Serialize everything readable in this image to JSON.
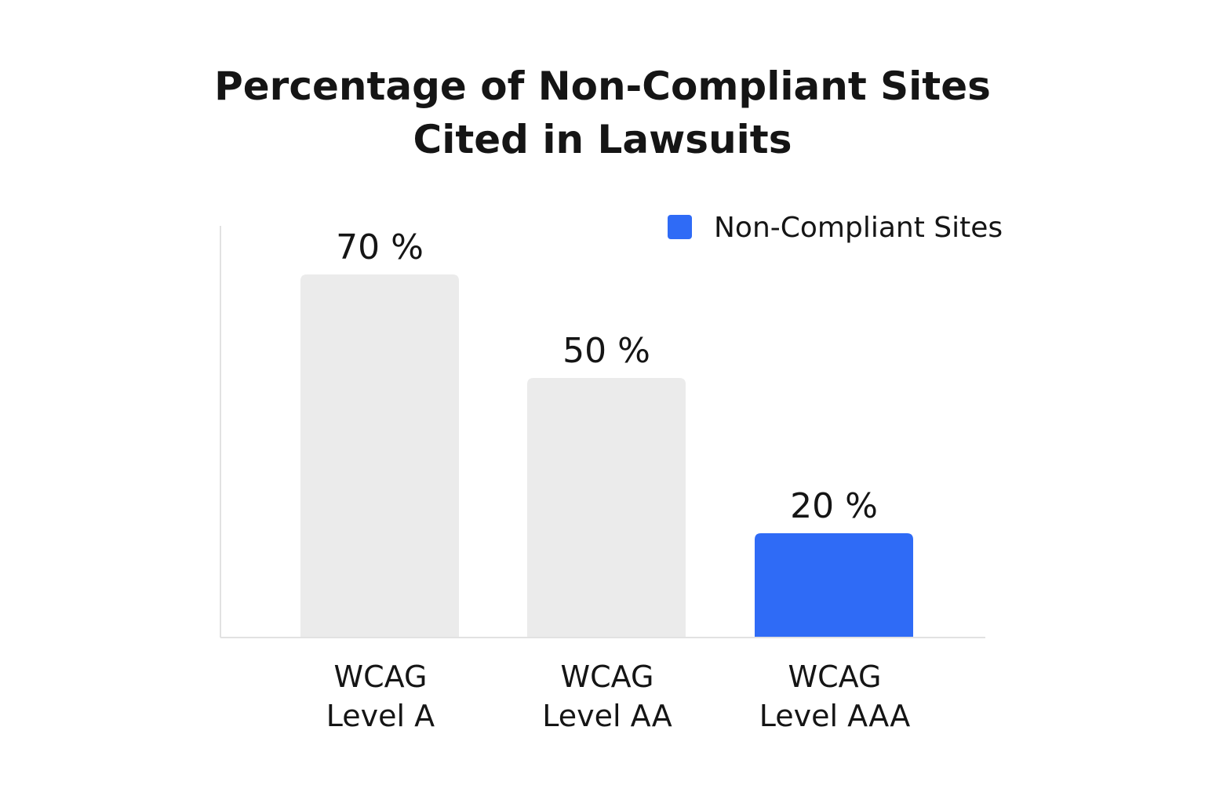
{
  "chart_data": {
    "type": "bar",
    "title_lines": [
      "Percentage of Non-Compliant Sites",
      "Cited in Lawsuits"
    ],
    "categories": [
      [
        "WCAG",
        "Level A"
      ],
      [
        "WCAG",
        "Level AA"
      ],
      [
        "WCAG",
        "Level AAA"
      ]
    ],
    "values": [
      70,
      50,
      20
    ],
    "value_labels": [
      "70 %",
      "50 %",
      "20 %"
    ],
    "series": [
      {
        "name": "Non-Compliant Sites",
        "values": [
          70,
          50,
          20
        ]
      }
    ],
    "highlight_index": 2,
    "ylim": [
      0,
      100
    ],
    "grid": false,
    "legend_position": "top-right",
    "colors": {
      "highlight": "#2f6bf6",
      "muted": "#ebebeb",
      "axis": "#e2e2e2",
      "text": "#151515"
    }
  }
}
